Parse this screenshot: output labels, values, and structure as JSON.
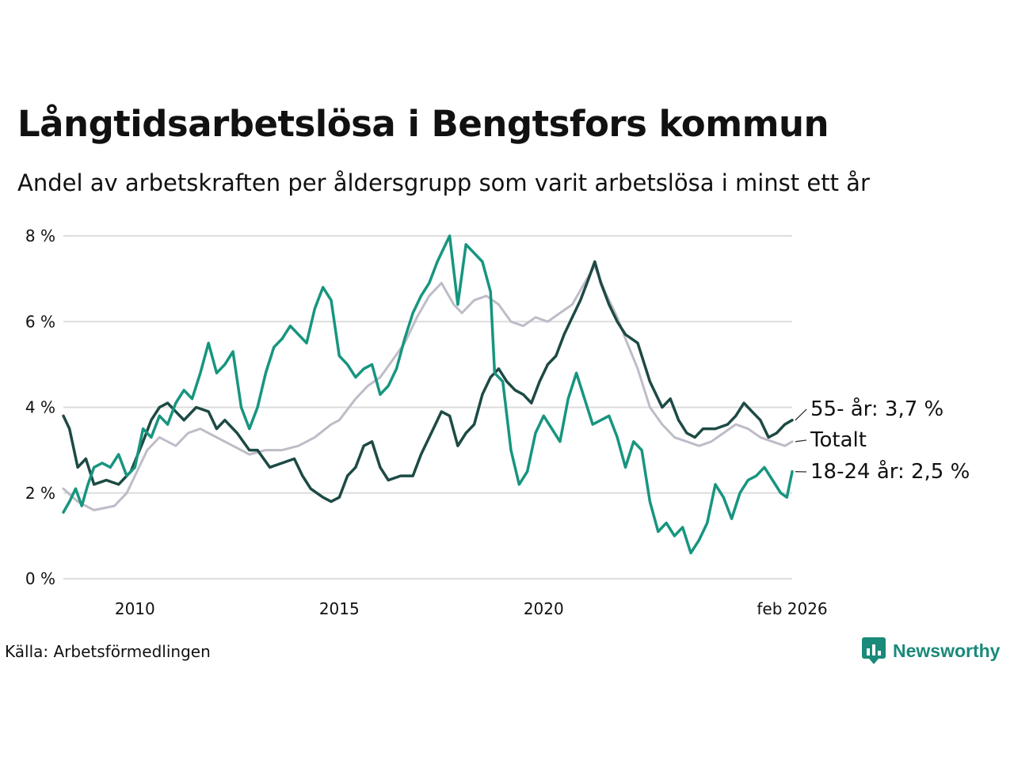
{
  "header": {
    "title": "Långtidsarbetslösa i Bengtsfors kommun",
    "subtitle": "Andel av arbetskraften per åldersgrupp som varit arbetslösa i minst ett år"
  },
  "footer": {
    "source": "Källa: Arbetsförmedlingen",
    "brand": "Newsworthy"
  },
  "colors": {
    "age55": "#1d4a44",
    "young": "#17957f",
    "total": "#bfbcc8",
    "grid": "#dddddd",
    "brand": "#1a8a7a"
  },
  "chart_data": {
    "type": "line",
    "title": "Långtidsarbetslösa i Bengtsfors kommun",
    "subtitle": "Andel av arbetskraften per åldersgrupp som varit arbetslösa i minst ett år",
    "xlabel": "",
    "ylabel": "",
    "xlim": [
      2008.25,
      2026.08
    ],
    "ylim": [
      0,
      8
    ],
    "grid": true,
    "y_ticks": [
      {
        "value": 0,
        "label": "0 %"
      },
      {
        "value": 2,
        "label": "2 %"
      },
      {
        "value": 4,
        "label": "4 %"
      },
      {
        "value": 6,
        "label": "6 %"
      },
      {
        "value": 8,
        "label": "8 %"
      }
    ],
    "x_ticks": [
      {
        "value": 2010,
        "label": "2010"
      },
      {
        "value": 2015,
        "label": "2015"
      },
      {
        "value": 2020,
        "label": "2020"
      },
      {
        "value": 2026.08,
        "label": "feb 2026"
      }
    ],
    "series": [
      {
        "name": "Totalt",
        "key": "total",
        "end_label": "Totalt",
        "points": [
          [
            2008.25,
            2.1
          ],
          [
            2008.6,
            1.8
          ],
          [
            2009.0,
            1.6
          ],
          [
            2009.5,
            1.7
          ],
          [
            2009.8,
            2.0
          ],
          [
            2010.0,
            2.4
          ],
          [
            2010.3,
            3.0
          ],
          [
            2010.6,
            3.3
          ],
          [
            2011.0,
            3.1
          ],
          [
            2011.3,
            3.4
          ],
          [
            2011.6,
            3.5
          ],
          [
            2012.0,
            3.3
          ],
          [
            2012.4,
            3.1
          ],
          [
            2012.8,
            2.9
          ],
          [
            2013.2,
            3.0
          ],
          [
            2013.6,
            3.0
          ],
          [
            2014.0,
            3.1
          ],
          [
            2014.4,
            3.3
          ],
          [
            2014.8,
            3.6
          ],
          [
            2015.0,
            3.7
          ],
          [
            2015.4,
            4.2
          ],
          [
            2015.7,
            4.5
          ],
          [
            2016.0,
            4.7
          ],
          [
            2016.3,
            5.1
          ],
          [
            2016.6,
            5.5
          ],
          [
            2016.9,
            6.1
          ],
          [
            2017.2,
            6.6
          ],
          [
            2017.5,
            6.9
          ],
          [
            2017.8,
            6.4
          ],
          [
            2018.0,
            6.2
          ],
          [
            2018.3,
            6.5
          ],
          [
            2018.6,
            6.6
          ],
          [
            2018.9,
            6.4
          ],
          [
            2019.2,
            6.0
          ],
          [
            2019.5,
            5.9
          ],
          [
            2019.8,
            6.1
          ],
          [
            2020.1,
            6.0
          ],
          [
            2020.4,
            6.2
          ],
          [
            2020.7,
            6.4
          ],
          [
            2021.0,
            6.9
          ],
          [
            2021.25,
            7.3
          ],
          [
            2021.5,
            6.7
          ],
          [
            2021.8,
            6.1
          ],
          [
            2022.0,
            5.6
          ],
          [
            2022.3,
            4.9
          ],
          [
            2022.6,
            4.0
          ],
          [
            2022.9,
            3.6
          ],
          [
            2023.2,
            3.3
          ],
          [
            2023.5,
            3.2
          ],
          [
            2023.8,
            3.1
          ],
          [
            2024.1,
            3.2
          ],
          [
            2024.4,
            3.4
          ],
          [
            2024.7,
            3.6
          ],
          [
            2025.0,
            3.5
          ],
          [
            2025.3,
            3.3
          ],
          [
            2025.6,
            3.2
          ],
          [
            2025.9,
            3.1
          ],
          [
            2026.08,
            3.2
          ]
        ]
      },
      {
        "name": "55- år",
        "key": "age55",
        "end_label": "55- år: 3,7 %",
        "points": [
          [
            2008.25,
            3.8
          ],
          [
            2008.4,
            3.5
          ],
          [
            2008.6,
            2.6
          ],
          [
            2008.8,
            2.8
          ],
          [
            2009.0,
            2.2
          ],
          [
            2009.3,
            2.3
          ],
          [
            2009.6,
            2.2
          ],
          [
            2009.9,
            2.5
          ],
          [
            2010.2,
            3.2
          ],
          [
            2010.4,
            3.7
          ],
          [
            2010.6,
            4.0
          ],
          [
            2010.8,
            4.1
          ],
          [
            2011.0,
            3.9
          ],
          [
            2011.2,
            3.7
          ],
          [
            2011.5,
            4.0
          ],
          [
            2011.8,
            3.9
          ],
          [
            2012.0,
            3.5
          ],
          [
            2012.2,
            3.7
          ],
          [
            2012.5,
            3.4
          ],
          [
            2012.8,
            3.0
          ],
          [
            2013.0,
            3.0
          ],
          [
            2013.3,
            2.6
          ],
          [
            2013.6,
            2.7
          ],
          [
            2013.9,
            2.8
          ],
          [
            2014.1,
            2.4
          ],
          [
            2014.3,
            2.1
          ],
          [
            2014.6,
            1.9
          ],
          [
            2014.8,
            1.8
          ],
          [
            2015.0,
            1.9
          ],
          [
            2015.2,
            2.4
          ],
          [
            2015.4,
            2.6
          ],
          [
            2015.6,
            3.1
          ],
          [
            2015.8,
            3.2
          ],
          [
            2016.0,
            2.6
          ],
          [
            2016.2,
            2.3
          ],
          [
            2016.5,
            2.4
          ],
          [
            2016.8,
            2.4
          ],
          [
            2017.0,
            2.9
          ],
          [
            2017.3,
            3.5
          ],
          [
            2017.5,
            3.9
          ],
          [
            2017.7,
            3.8
          ],
          [
            2017.9,
            3.1
          ],
          [
            2018.1,
            3.4
          ],
          [
            2018.3,
            3.6
          ],
          [
            2018.5,
            4.3
          ],
          [
            2018.7,
            4.7
          ],
          [
            2018.9,
            4.9
          ],
          [
            2019.1,
            4.6
          ],
          [
            2019.3,
            4.4
          ],
          [
            2019.5,
            4.3
          ],
          [
            2019.7,
            4.1
          ],
          [
            2019.9,
            4.6
          ],
          [
            2020.1,
            5.0
          ],
          [
            2020.3,
            5.2
          ],
          [
            2020.5,
            5.7
          ],
          [
            2020.7,
            6.1
          ],
          [
            2020.9,
            6.5
          ],
          [
            2021.1,
            7.0
          ],
          [
            2021.25,
            7.4
          ],
          [
            2021.4,
            6.9
          ],
          [
            2021.6,
            6.4
          ],
          [
            2021.8,
            6.0
          ],
          [
            2022.0,
            5.7
          ],
          [
            2022.3,
            5.5
          ],
          [
            2022.6,
            4.6
          ],
          [
            2022.9,
            4.0
          ],
          [
            2023.1,
            4.2
          ],
          [
            2023.3,
            3.7
          ],
          [
            2023.5,
            3.4
          ],
          [
            2023.7,
            3.3
          ],
          [
            2023.9,
            3.5
          ],
          [
            2024.2,
            3.5
          ],
          [
            2024.5,
            3.6
          ],
          [
            2024.7,
            3.8
          ],
          [
            2024.9,
            4.1
          ],
          [
            2025.1,
            3.9
          ],
          [
            2025.3,
            3.7
          ],
          [
            2025.5,
            3.3
          ],
          [
            2025.7,
            3.4
          ],
          [
            2025.9,
            3.6
          ],
          [
            2026.08,
            3.7
          ]
        ]
      },
      {
        "name": "18-24 år",
        "key": "young",
        "end_label": "18-24 år: 2,5 %",
        "points": [
          [
            2008.25,
            1.55
          ],
          [
            2008.4,
            1.8
          ],
          [
            2008.55,
            2.1
          ],
          [
            2008.7,
            1.7
          ],
          [
            2008.85,
            2.2
          ],
          [
            2009.0,
            2.6
          ],
          [
            2009.2,
            2.7
          ],
          [
            2009.4,
            2.6
          ],
          [
            2009.6,
            2.9
          ],
          [
            2009.8,
            2.4
          ],
          [
            2010.0,
            2.6
          ],
          [
            2010.2,
            3.5
          ],
          [
            2010.4,
            3.3
          ],
          [
            2010.6,
            3.8
          ],
          [
            2010.8,
            3.6
          ],
          [
            2011.0,
            4.1
          ],
          [
            2011.2,
            4.4
          ],
          [
            2011.4,
            4.2
          ],
          [
            2011.6,
            4.8
          ],
          [
            2011.8,
            5.5
          ],
          [
            2012.0,
            4.8
          ],
          [
            2012.2,
            5.0
          ],
          [
            2012.4,
            5.3
          ],
          [
            2012.6,
            4.0
          ],
          [
            2012.8,
            3.5
          ],
          [
            2013.0,
            4.0
          ],
          [
            2013.2,
            4.8
          ],
          [
            2013.4,
            5.4
          ],
          [
            2013.6,
            5.6
          ],
          [
            2013.8,
            5.9
          ],
          [
            2014.0,
            5.7
          ],
          [
            2014.2,
            5.5
          ],
          [
            2014.4,
            6.3
          ],
          [
            2014.6,
            6.8
          ],
          [
            2014.8,
            6.5
          ],
          [
            2015.0,
            5.2
          ],
          [
            2015.2,
            5.0
          ],
          [
            2015.4,
            4.7
          ],
          [
            2015.6,
            4.9
          ],
          [
            2015.8,
            5.0
          ],
          [
            2016.0,
            4.3
          ],
          [
            2016.2,
            4.5
          ],
          [
            2016.4,
            4.9
          ],
          [
            2016.6,
            5.6
          ],
          [
            2016.8,
            6.2
          ],
          [
            2017.0,
            6.6
          ],
          [
            2017.2,
            6.9
          ],
          [
            2017.4,
            7.4
          ],
          [
            2017.6,
            7.8
          ],
          [
            2017.7,
            8.0
          ],
          [
            2017.9,
            6.4
          ],
          [
            2018.1,
            7.8
          ],
          [
            2018.3,
            7.6
          ],
          [
            2018.5,
            7.4
          ],
          [
            2018.7,
            6.7
          ],
          [
            2018.8,
            4.8
          ],
          [
            2019.0,
            4.6
          ],
          [
            2019.2,
            3.0
          ],
          [
            2019.4,
            2.2
          ],
          [
            2019.6,
            2.5
          ],
          [
            2019.8,
            3.4
          ],
          [
            2020.0,
            3.8
          ],
          [
            2020.2,
            3.5
          ],
          [
            2020.4,
            3.2
          ],
          [
            2020.6,
            4.2
          ],
          [
            2020.8,
            4.8
          ],
          [
            2021.0,
            4.2
          ],
          [
            2021.2,
            3.6
          ],
          [
            2021.4,
            3.7
          ],
          [
            2021.6,
            3.8
          ],
          [
            2021.8,
            3.3
          ],
          [
            2022.0,
            2.6
          ],
          [
            2022.2,
            3.2
          ],
          [
            2022.4,
            3.0
          ],
          [
            2022.6,
            1.8
          ],
          [
            2022.8,
            1.1
          ],
          [
            2023.0,
            1.3
          ],
          [
            2023.2,
            1.0
          ],
          [
            2023.4,
            1.2
          ],
          [
            2023.6,
            0.6
          ],
          [
            2023.8,
            0.9
          ],
          [
            2024.0,
            1.3
          ],
          [
            2024.2,
            2.2
          ],
          [
            2024.4,
            1.9
          ],
          [
            2024.6,
            1.4
          ],
          [
            2024.8,
            2.0
          ],
          [
            2025.0,
            2.3
          ],
          [
            2025.2,
            2.4
          ],
          [
            2025.4,
            2.6
          ],
          [
            2025.6,
            2.3
          ],
          [
            2025.8,
            2.0
          ],
          [
            2025.95,
            1.9
          ],
          [
            2026.08,
            2.5
          ]
        ]
      }
    ]
  }
}
